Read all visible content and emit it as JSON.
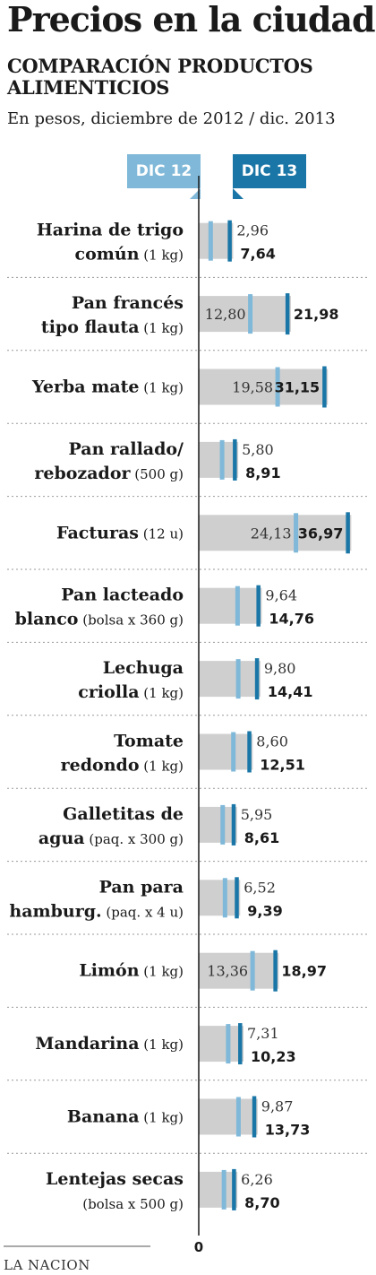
{
  "title": "Precios en la ciudad",
  "subtitle": "COMPARACIÓN PRODUCTOS ALIMENTICIOS",
  "unit_note": "En pesos, diciembre de 2012 / dic. 2013",
  "source": "LA NACION",
  "colors": {
    "dic12": "#7fb8d8",
    "dic13": "#1a76a6",
    "bar": "#cfcfcf",
    "separator": "#9a9a9a"
  },
  "chart_data": {
    "type": "bar",
    "series": [
      {
        "name": "DIC 12",
        "values": [
          2.96,
          12.8,
          19.58,
          5.8,
          24.13,
          9.64,
          9.8,
          8.6,
          5.95,
          6.52,
          13.36,
          7.31,
          9.87,
          6.26
        ]
      },
      {
        "name": "DIC 13",
        "values": [
          7.64,
          21.98,
          31.15,
          8.91,
          36.97,
          14.76,
          14.41,
          12.51,
          8.61,
          9.39,
          18.97,
          10.23,
          13.73,
          8.7
        ]
      }
    ],
    "categories": [
      {
        "line1_name": "Harina de trigo",
        "line1_qty": "",
        "line2_name": "común",
        "line2_qty": "(1 kg)"
      },
      {
        "line1_name": "Pan francés",
        "line1_qty": "",
        "line2_name": "tipo flauta",
        "line2_qty": "(1 kg)"
      },
      {
        "line1_name": "Yerba mate",
        "line1_qty": "(1 kg)",
        "line2_name": "",
        "line2_qty": ""
      },
      {
        "line1_name": "Pan rallado/",
        "line1_qty": "",
        "line2_name": "rebozador",
        "line2_qty": "(500 g)"
      },
      {
        "line1_name": "Facturas",
        "line1_qty": "(12 u)",
        "line2_name": "",
        "line2_qty": ""
      },
      {
        "line1_name": "Pan lacteado",
        "line1_qty": "",
        "line2_name": "blanco",
        "line2_qty": "(bolsa x 360 g)"
      },
      {
        "line1_name": "Lechuga",
        "line1_qty": "",
        "line2_name": "criolla",
        "line2_qty": "(1 kg)"
      },
      {
        "line1_name": "Tomate",
        "line1_qty": "",
        "line2_name": "redondo",
        "line2_qty": "(1 kg)"
      },
      {
        "line1_name": "Galletitas de",
        "line1_qty": "",
        "line2_name": "agua",
        "line2_qty": "(paq. x 300 g)"
      },
      {
        "line1_name": "Pan para",
        "line1_qty": "",
        "line2_name": "hamburg.",
        "line2_qty": "(paq. x 4 u)"
      },
      {
        "line1_name": "Limón",
        "line1_qty": "(1 kg)",
        "line2_name": "",
        "line2_qty": ""
      },
      {
        "line1_name": "Mandarina",
        "line1_qty": "(1 kg)",
        "line2_name": "",
        "line2_qty": ""
      },
      {
        "line1_name": "Banana",
        "line1_qty": "(1 kg)",
        "line2_name": "",
        "line2_qty": ""
      },
      {
        "line1_name": "Lentejas secas",
        "line1_qty": "",
        "line2_name": "",
        "line2_qty": "(bolsa x 500 g)"
      }
    ],
    "labels_dic12": [
      "2,96",
      "12,80",
      "19,58",
      "5,80",
      "24,13",
      "9,64",
      "9,80",
      "8,60",
      "5,95",
      "6,52",
      "13,36",
      "7,31",
      "9,87",
      "6,26"
    ],
    "labels_dic13": [
      "7,64",
      "21,98",
      "31,15",
      "8,91",
      "36,97",
      "14,76",
      "14,41",
      "12,51",
      "8,61",
      "9,39",
      "18,97",
      "10,23",
      "13,73",
      "8,70"
    ],
    "x_tick_label": "0",
    "xlim": [
      0,
      38
    ],
    "legend": [
      "DIC 12",
      "DIC 13"
    ],
    "legend_placement": "top"
  }
}
